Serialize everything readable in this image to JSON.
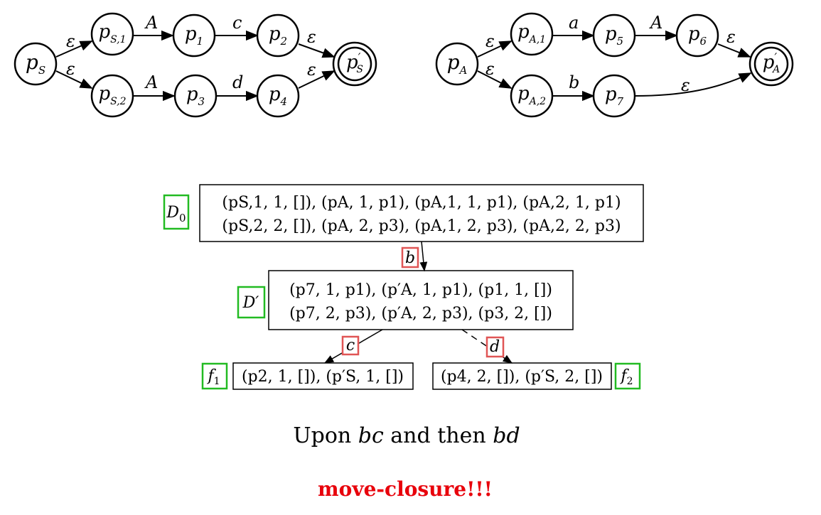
{
  "automaton_s": {
    "states": {
      "ps": {
        "main": "p",
        "sub": "S",
        "prime": ""
      },
      "ps1": {
        "main": "p",
        "sub": "S,1",
        "prime": ""
      },
      "ps2": {
        "main": "p",
        "sub": "S,2",
        "prime": ""
      },
      "p1": {
        "main": "p",
        "sub": "1",
        "prime": ""
      },
      "p2": {
        "main": "p",
        "sub": "2",
        "prime": ""
      },
      "p3": {
        "main": "p",
        "sub": "3",
        "prime": ""
      },
      "p4": {
        "main": "p",
        "sub": "4",
        "prime": ""
      },
      "psf": {
        "main": "p",
        "sub": "S",
        "prime": "′"
      }
    },
    "edges": {
      "e1": "ε",
      "e2": "ε",
      "e3": "A",
      "e4": "c",
      "e5": "ε",
      "e6": "A",
      "e7": "d",
      "e8": "ε"
    }
  },
  "automaton_a": {
    "states": {
      "pa": {
        "main": "p",
        "sub": "A",
        "prime": ""
      },
      "pa1": {
        "main": "p",
        "sub": "A,1",
        "prime": ""
      },
      "pa2": {
        "main": "p",
        "sub": "A,2",
        "prime": ""
      },
      "p5": {
        "main": "p",
        "sub": "5",
        "prime": ""
      },
      "p6": {
        "main": "p",
        "sub": "6",
        "prime": ""
      },
      "p7": {
        "main": "p",
        "sub": "7",
        "prime": ""
      },
      "paf": {
        "main": "p",
        "sub": "A",
        "prime": "′"
      }
    },
    "edges": {
      "e1": "ε",
      "e2": "ε",
      "e3": "a",
      "e4": "A",
      "e5": "ε",
      "e6": "b",
      "e7": "ε"
    }
  },
  "derivation": {
    "d0": {
      "tag": "D",
      "tag_sub": "0",
      "line1": "(pS,1, 1, []), (pA, 1, p1), (pA,1, 1, p1), (pA,2, 1, p1)",
      "line2": "(pS,2, 2, []), (pA, 2, p3), (pA,1, 2, p3), (pA,2, 2, p3)"
    },
    "edge_b": "b",
    "dprime": {
      "tag": "D′",
      "line1": "(p7, 1, p1), (p′A, 1, p1), (p1, 1, [])",
      "line2": "(p7, 2, p3), (p′A, 2, p3), (p3, 2, [])"
    },
    "edge_c": "c",
    "edge_d": "d",
    "f1": {
      "tag": "f",
      "tag_sub": "1",
      "text": "(p2, 1, []), (p′S, 1, [])"
    },
    "f2": {
      "tag": "f",
      "tag_sub": "2",
      "text": "(p4, 2, []), (p′S, 2, [])"
    }
  },
  "caption": {
    "pre": "Upon ",
    "w1": "bc",
    "mid": " and then ",
    "w2": "bd"
  },
  "footer": "move-closure!!!",
  "colors": {
    "green": "#22bb22",
    "red": "#e05555",
    "footer": "#e8000b"
  }
}
